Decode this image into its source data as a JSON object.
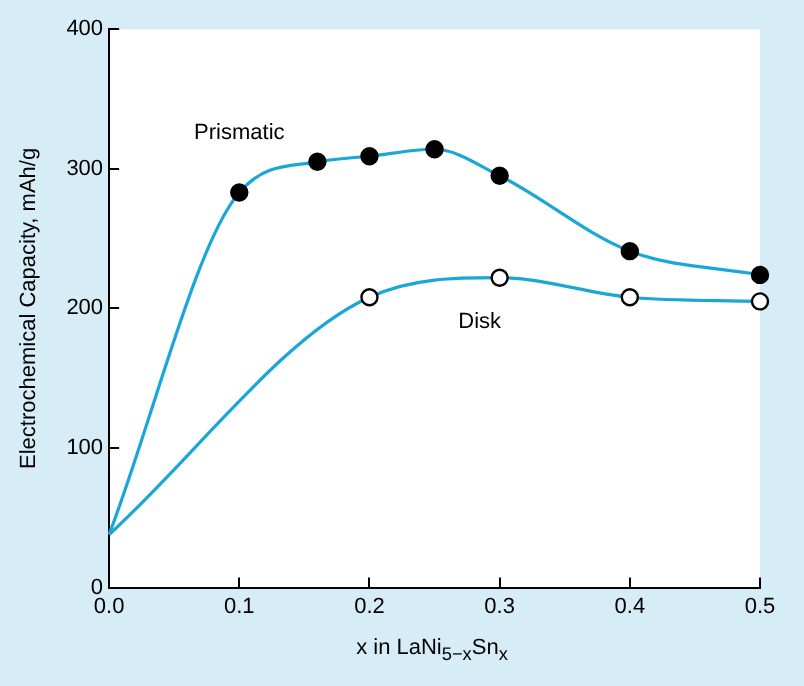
{
  "chart_data": {
    "type": "line",
    "xlabel": "x in LaNi$_{5−x}$Sn$_{x}$",
    "ylabel": "Electrochemical Capacity, mAh/g",
    "xlim": [
      0,
      0.5
    ],
    "xticks": [
      {
        "value": 0,
        "label": "0.0"
      },
      0.1,
      0.2,
      0.3,
      0.4,
      0.5
    ],
    "ylim": [
      0,
      400
    ],
    "yticks": [
      0,
      100,
      200,
      300,
      400
    ],
    "grid": false,
    "legend": false,
    "series": [
      {
        "name": "Prismatic",
        "marker": "none",
        "color": "#1aa7d8",
        "x": [
          0,
          0.1,
          0.16,
          0.2,
          0.25,
          0.3,
          0.4,
          0.5
        ],
        "values": [
          38,
          283,
          305,
          309,
          314,
          295,
          241,
          224
        ]
      },
      {
        "name": "Disk",
        "marker": "none",
        "color": "#1aa7d8",
        "x": [
          0,
          0.2,
          0.3,
          0.4,
          0.5
        ],
        "values": [
          38,
          208,
          222,
          208,
          205
        ]
      },
      {
        "type": "scatter",
        "marker": "circle",
        "color": "#000000",
        "x": [
          0.1,
          0.16,
          0.2,
          0.25,
          0.3,
          0.4,
          0.5
        ],
        "values": [
          283,
          305,
          309,
          314,
          295,
          241,
          224
        ]
      },
      {
        "type": "scatter",
        "marker": "circle",
        "color": "#ffffff",
        "x": [
          0.2,
          0.3,
          0.4,
          0.5
        ],
        "values": [
          208,
          222,
          208,
          205
        ]
      }
    ]
  }
}
